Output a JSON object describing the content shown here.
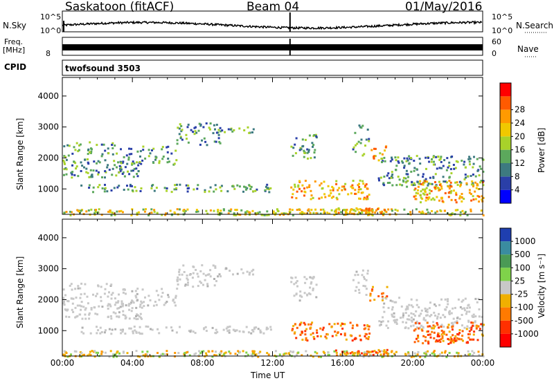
{
  "header": {
    "station": "Saskatoon (fitACF)",
    "beam": "Beam 04",
    "date": "01/May/2016"
  },
  "params": {
    "nsky_label": "N.Sky",
    "nsky_ticks": [
      "10^5",
      "10^0"
    ],
    "nsearch_label": "N.Search",
    "freq_label": "Freq.",
    "freq_unit": "[MHz]",
    "freq_ticks": [
      "8"
    ],
    "nave_ticks": [
      "60",
      "0"
    ],
    "nave_label": "Nave",
    "cpid_label": "CPID",
    "cpid_value": "twofsound 3503"
  },
  "chart_data": [
    {
      "type": "heatmap",
      "panel": "power",
      "ylabel": "Slant Range [km]",
      "yticks": [
        1000,
        2000,
        3000,
        4000
      ],
      "ylim": [
        180,
        4600
      ],
      "xlim_hours": [
        0,
        24
      ],
      "colorbar_label": "Power [dB]",
      "colorbar_ticks": [
        4,
        8,
        12,
        16,
        20,
        24,
        28
      ],
      "colorbar_colors": [
        "#0000ff",
        "#2a3fa8",
        "#3d7a80",
        "#5ca85c",
        "#a8d22a",
        "#f0c800",
        "#ff9a00",
        "#ff5a00",
        "#ff0000"
      ]
    },
    {
      "type": "heatmap",
      "panel": "velocity",
      "ylabel": "Slant Range [km]",
      "yticks": [
        1000,
        2000,
        3000,
        4000
      ],
      "ylim": [
        180,
        4600
      ],
      "xlim_hours": [
        0,
        24
      ],
      "colorbar_label": "Velocity [m s⁻¹]",
      "colorbar_ticks": [
        "1000",
        "500",
        "100",
        "25",
        "-25",
        "-100",
        "-500",
        "-1000"
      ],
      "colorbar_colors": [
        "#1f3fb0",
        "#3a8ca0",
        "#4a9a55",
        "#7fd24a",
        "#c8c8c8",
        "#f0b000",
        "#ff7a00",
        "#ff3000",
        "#ff0000"
      ]
    }
  ],
  "xaxis": {
    "ticks": [
      "00:00",
      "04:00",
      "08:00",
      "12:00",
      "16:00",
      "20:00",
      "00:00"
    ],
    "label": "Time UT"
  }
}
